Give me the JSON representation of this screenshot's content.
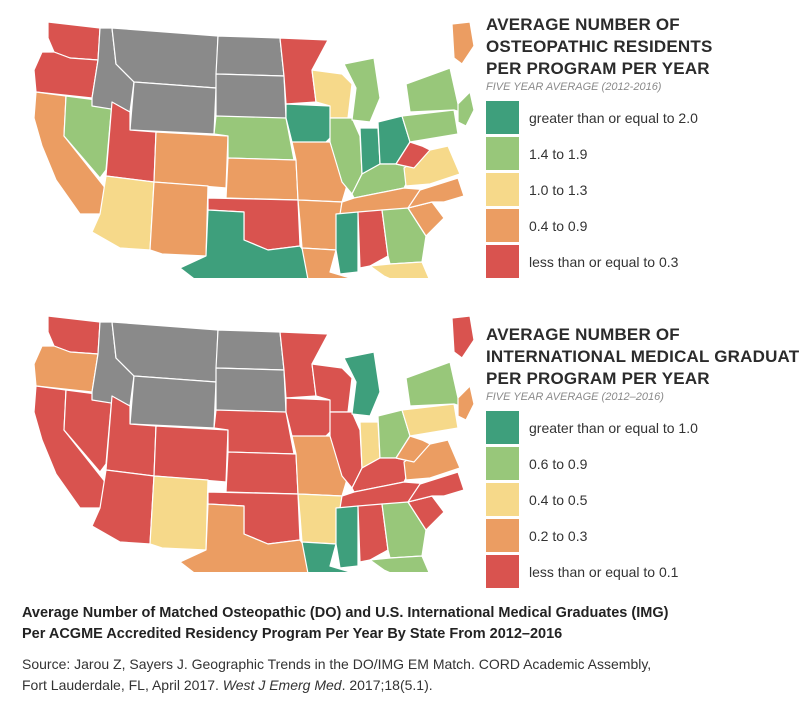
{
  "colors": {
    "gte_high": "#3e9f7c",
    "mid_high": "#98c77a",
    "mid": "#f6d98a",
    "low": "#eb9d62",
    "lowest": "#d9534f",
    "no_data": "#8a8a8a"
  },
  "legend1": {
    "title_lines": [
      "AVERAGE NUMBER OF",
      "OSTEOPATHIC RESIDENTS",
      "PER PROGRAM PER YEAR"
    ],
    "subtitle": "FIVE YEAR AVERAGE (2012-2016)",
    "items": [
      {
        "label": "greater than or equal to 2.0",
        "color": "#3e9f7c"
      },
      {
        "label": "1.4 to 1.9",
        "color": "#98c77a"
      },
      {
        "label": "1.0 to 1.3",
        "color": "#f6d98a"
      },
      {
        "label": "0.4 to 0.9",
        "color": "#eb9d62"
      },
      {
        "label": "less than or equal to 0.3",
        "color": "#d9534f"
      }
    ]
  },
  "legend2": {
    "title_lines": [
      "AVERAGE NUMBER OF",
      "INTERNATIONAL MEDICAL GRADUATES",
      "PER PROGRAM PER YEAR"
    ],
    "subtitle": "FIVE YEAR AVERAGE (2012–2016)",
    "items": [
      {
        "label": "greater than or equal to 1.0",
        "color": "#3e9f7c"
      },
      {
        "label": "0.6 to 0.9",
        "color": "#98c77a"
      },
      {
        "label": "0.4 to 0.5",
        "color": "#f6d98a"
      },
      {
        "label": "0.2 to 0.3",
        "color": "#eb9d62"
      },
      {
        "label": "less than or equal to 0.1",
        "color": "#d9534f"
      }
    ]
  },
  "map1_states": {
    "WA": "lowest",
    "OR": "lowest",
    "CA": "low",
    "NV": "mid_high",
    "ID": "no_data",
    "MT": "no_data",
    "WY": "no_data",
    "UT": "lowest",
    "AZ": "mid",
    "CO": "low",
    "NM": "low",
    "ND": "no_data",
    "SD": "no_data",
    "NE": "mid_high",
    "KS": "low",
    "OK": "lowest",
    "TX": "gte_high",
    "MN": "lowest",
    "IA": "gte_high",
    "MO": "low",
    "AR": "low",
    "LA": "low",
    "WI": "mid",
    "IL": "mid_high",
    "MS": "gte_high",
    "MI": "mid_high",
    "IN": "gte_high",
    "KY": "mid_high",
    "TN": "low",
    "AL": "lowest",
    "OH": "gte_high",
    "GA": "mid_high",
    "FL": "mid",
    "SC": "low",
    "NC": "low",
    "VA": "mid",
    "WV": "lowest",
    "PA": "mid_high",
    "NY": "mid_high",
    "ME": "low",
    "NE_REGION": "mid_high"
  },
  "map2_states": {
    "WA": "lowest",
    "OR": "low",
    "CA": "lowest",
    "NV": "lowest",
    "ID": "no_data",
    "MT": "no_data",
    "WY": "no_data",
    "UT": "lowest",
    "AZ": "lowest",
    "CO": "lowest",
    "NM": "mid",
    "ND": "no_data",
    "SD": "no_data",
    "NE": "lowest",
    "KS": "lowest",
    "OK": "lowest",
    "TX": "low",
    "MN": "lowest",
    "IA": "lowest",
    "MO": "low",
    "AR": "mid",
    "LA": "gte_high",
    "WI": "lowest",
    "IL": "lowest",
    "MS": "gte_high",
    "MI": "gte_high",
    "IN": "mid",
    "KY": "lowest",
    "TN": "lowest",
    "AL": "lowest",
    "OH": "mid_high",
    "GA": "mid_high",
    "FL": "mid_high",
    "SC": "lowest",
    "NC": "lowest",
    "VA": "low",
    "WV": "low",
    "PA": "mid",
    "NY": "mid_high",
    "ME": "lowest",
    "NE_REGION": "low"
  },
  "caption": {
    "title_line1": "Average Number of Matched Osteopathic (DO) and U.S. International Medical Graduates (IMG)",
    "title_line2": "Per ACGME Accredited Residency Program Per Year By State From 2012–2016",
    "source_line1": "Source: Jarou Z, Sayers J. Geographic Trends in the DO/IMG EM Match. CORD Academic Assembly,",
    "source_line2_a": "Fort Lauderdale, FL, April 2017. ",
    "source_line2_journal": "West J Emerg Med",
    "source_line2_b": ". 2017;18(5.1)."
  }
}
